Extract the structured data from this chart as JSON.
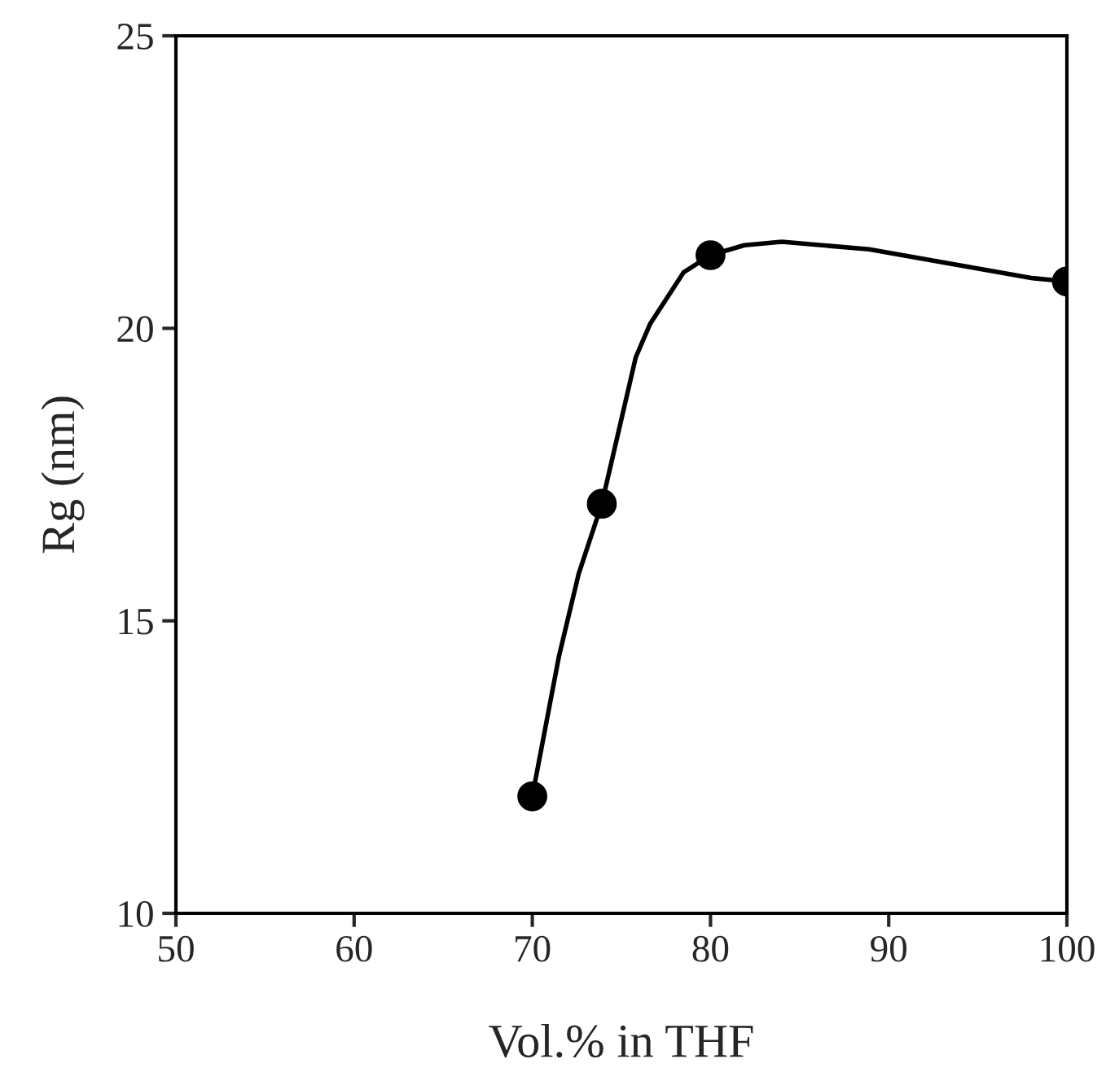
{
  "chart_data": {
    "type": "scatter",
    "xlabel": "Vol.% in THF",
    "ylabel": "Rg (nm)",
    "xlim": [
      50,
      100
    ],
    "xticks": [
      50,
      60,
      70,
      80,
      90,
      100
    ],
    "ylim": [
      10,
      25
    ],
    "yticks": [
      10,
      15,
      20,
      25
    ],
    "grid": false,
    "series": [
      {
        "type": "line",
        "color": "#000000",
        "marker": "none",
        "line_style": "solid",
        "x": [
          70,
          71.5,
          72.6,
          73.9,
          75.8,
          76.6,
          78.5,
          80,
          81.9,
          84,
          88.9,
          98,
          100
        ],
        "values": [
          12,
          14.4,
          15.8,
          17,
          19.5,
          20.07,
          20.96,
          21.25,
          21.42,
          21.48,
          21.35,
          20.86,
          20.8
        ]
      },
      {
        "color": "#000000",
        "marker": "circle",
        "x": [
          70,
          73.9,
          80,
          100
        ],
        "values": [
          12,
          17,
          21.25,
          20.8
        ]
      }
    ]
  }
}
